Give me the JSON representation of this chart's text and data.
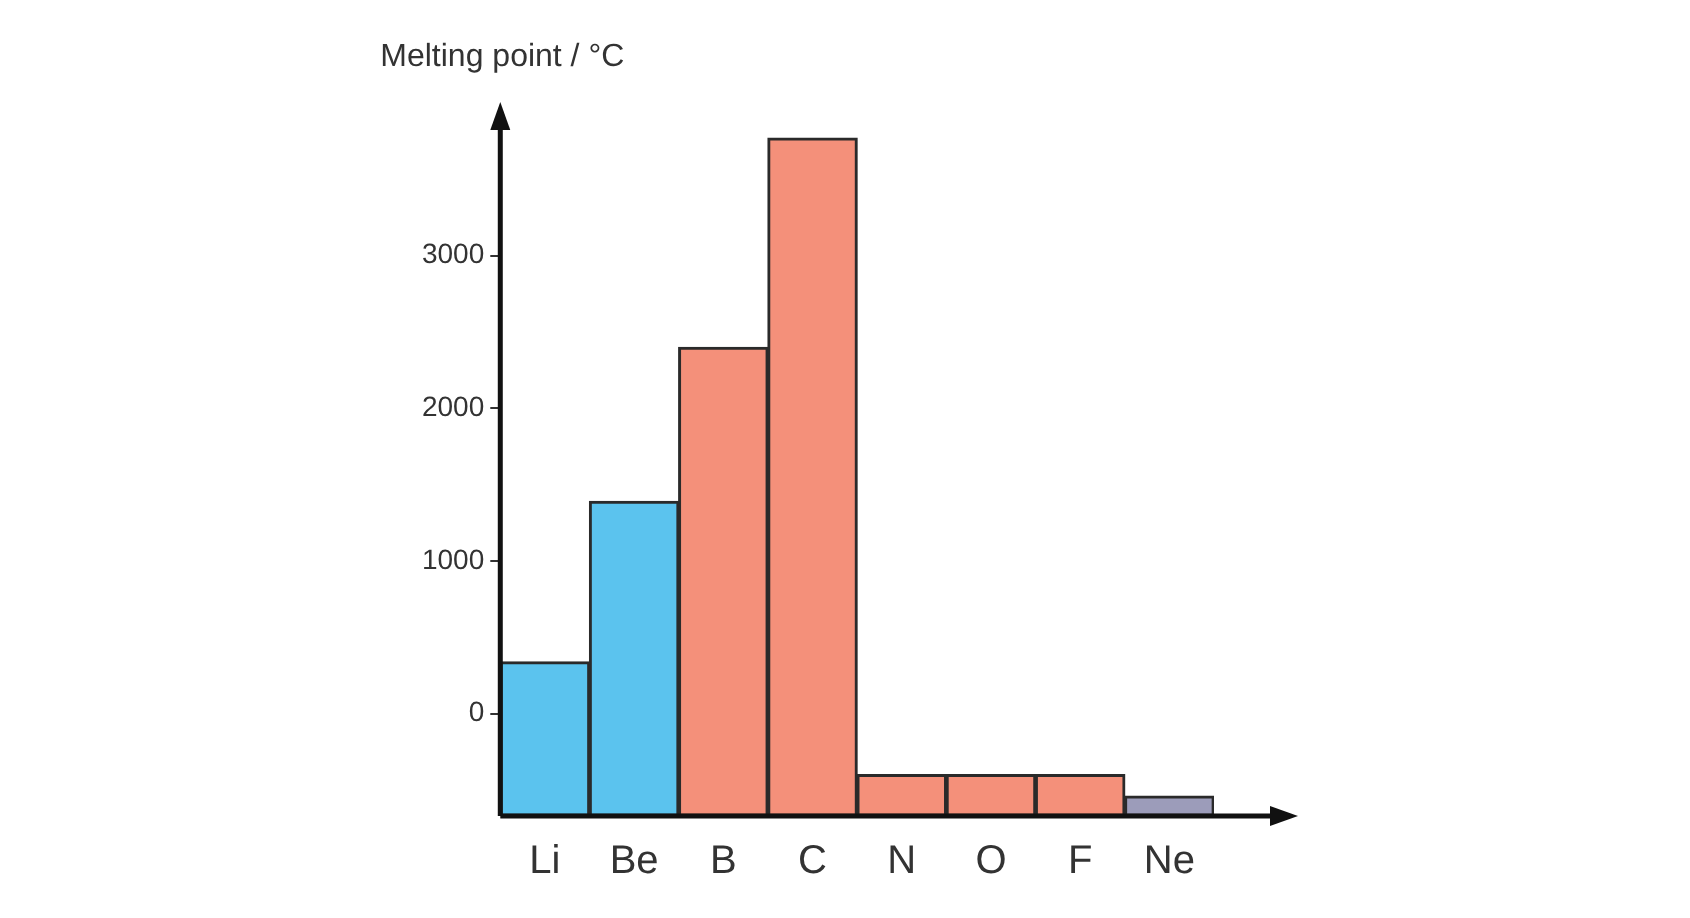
{
  "chart_data": {
    "type": "bar",
    "ylabel": "Melting point / °C",
    "categories": [
      "Li",
      "Be",
      "B",
      "C",
      "N",
      "O",
      "F",
      "Ne"
    ],
    "base": [
      -670,
      -670,
      -670,
      -670,
      -670,
      -670,
      -670,
      -670
    ],
    "values": [
      1010,
      2060,
      3070,
      4440,
      270,
      270,
      270,
      130
    ],
    "colors": [
      "#5bc3ee",
      "#5bc3ee",
      "#f4907a",
      "#f4907a",
      "#f4907a",
      "#f4907a",
      "#f4907a",
      "#9c9cba"
    ],
    "ylim": [
      -670,
      3850
    ],
    "yticks": [
      0,
      1000,
      2000,
      3000
    ]
  }
}
